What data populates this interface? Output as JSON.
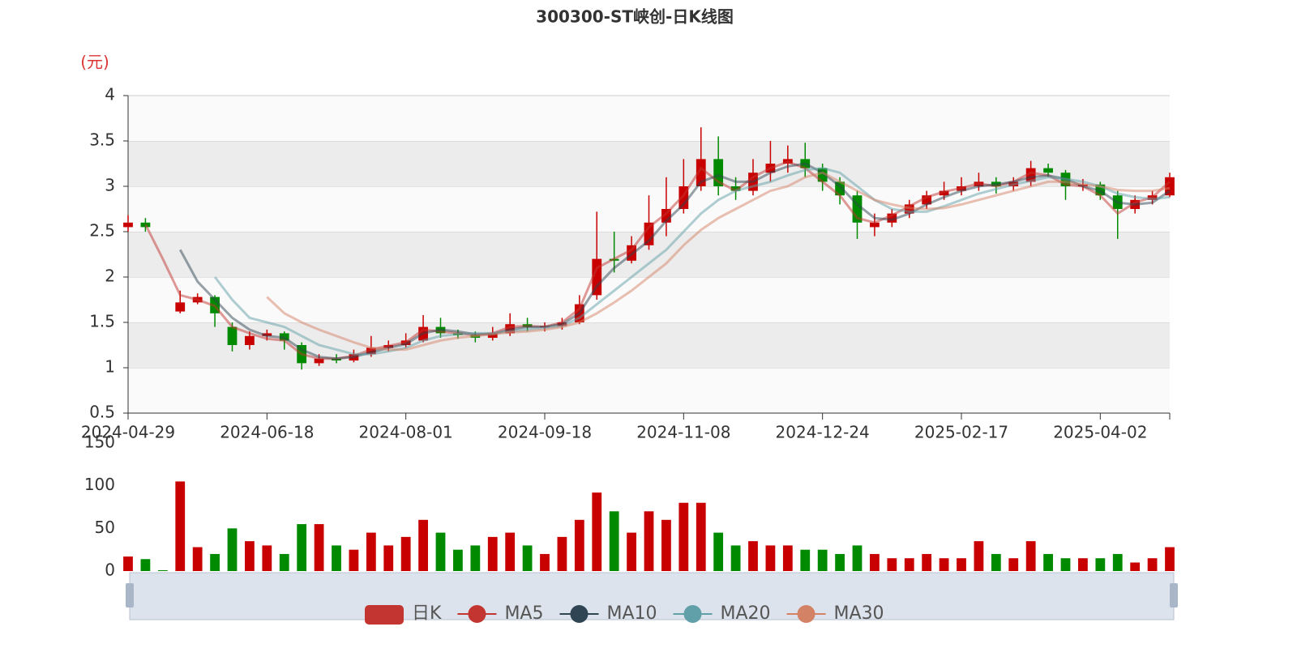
{
  "chart_data": [
    {
      "type": "candlestick",
      "title": "300300-ST峡创-日K线图",
      "y_unit": "(元)",
      "categories": [
        "2024-04-29",
        null,
        null,
        null,
        null,
        null,
        null,
        null,
        "2024-06-18",
        null,
        null,
        null,
        null,
        null,
        null,
        null,
        "2024-08-01",
        null,
        null,
        null,
        null,
        null,
        null,
        null,
        "2024-09-18",
        null,
        null,
        null,
        null,
        null,
        null,
        null,
        "2024-11-08",
        null,
        null,
        null,
        null,
        null,
        null,
        null,
        "2024-12-24",
        null,
        null,
        null,
        null,
        null,
        null,
        null,
        "2025-02-17",
        null,
        null,
        null,
        null,
        null,
        null,
        null,
        "2025-04-02",
        null,
        null,
        null,
        null
      ],
      "ylim": [
        0.5,
        4
      ],
      "yticks": [
        0.5,
        1,
        1.5,
        2,
        2.5,
        3,
        3.5,
        4
      ],
      "up_color": "#c80000",
      "down_color": "#008a00",
      "line_opacity": 0.5,
      "band_color": "#ececec",
      "series": [
        {
          "name": "日K",
          "color": "#c23531",
          "values": [
            [
              2.55,
              2.6,
              2.5,
              2.68
            ],
            [
              2.6,
              2.55,
              2.5,
              2.65
            ],
            null,
            [
              1.62,
              1.72,
              1.6,
              1.85
            ],
            [
              1.72,
              1.78,
              1.7,
              1.82
            ],
            [
              1.78,
              1.6,
              1.45,
              1.8
            ],
            [
              1.45,
              1.25,
              1.18,
              1.5
            ],
            [
              1.25,
              1.35,
              1.2,
              1.4
            ],
            [
              1.35,
              1.38,
              1.3,
              1.42
            ],
            [
              1.38,
              1.3,
              1.2,
              1.4
            ],
            [
              1.25,
              1.05,
              0.98,
              1.28
            ],
            [
              1.05,
              1.1,
              1.02,
              1.15
            ],
            [
              1.1,
              1.08,
              1.05,
              1.15
            ],
            [
              1.08,
              1.15,
              1.06,
              1.2
            ],
            [
              1.15,
              1.22,
              1.12,
              1.35
            ],
            [
              1.22,
              1.25,
              1.18,
              1.3
            ],
            [
              1.25,
              1.3,
              1.22,
              1.38
            ],
            [
              1.3,
              1.45,
              1.28,
              1.58
            ],
            [
              1.45,
              1.38,
              1.33,
              1.55
            ],
            [
              1.38,
              1.36,
              1.32,
              1.42
            ],
            [
              1.36,
              1.33,
              1.28,
              1.4
            ],
            [
              1.33,
              1.38,
              1.3,
              1.45
            ],
            [
              1.38,
              1.48,
              1.35,
              1.6
            ],
            [
              1.48,
              1.45,
              1.4,
              1.55
            ],
            [
              1.45,
              1.46,
              1.4,
              1.5
            ],
            [
              1.46,
              1.5,
              1.42,
              1.55
            ],
            [
              1.5,
              1.7,
              1.48,
              1.8
            ],
            [
              1.8,
              2.2,
              1.75,
              2.72
            ],
            [
              2.2,
              2.18,
              2.05,
              2.5
            ],
            [
              2.18,
              2.35,
              2.15,
              2.45
            ],
            [
              2.35,
              2.6,
              2.3,
              2.9
            ],
            [
              2.6,
              2.75,
              2.45,
              3.1
            ],
            [
              2.75,
              3.0,
              2.7,
              3.3
            ],
            [
              3.0,
              3.3,
              2.95,
              3.65
            ],
            [
              3.3,
              3.0,
              2.9,
              3.55
            ],
            [
              3.0,
              2.95,
              2.85,
              3.1
            ],
            [
              2.95,
              3.15,
              2.9,
              3.3
            ],
            [
              3.15,
              3.25,
              3.05,
              3.5
            ],
            [
              3.25,
              3.3,
              3.15,
              3.45
            ],
            [
              3.3,
              3.2,
              3.1,
              3.48
            ],
            [
              3.2,
              3.05,
              2.95,
              3.25
            ],
            [
              3.05,
              2.9,
              2.8,
              3.1
            ],
            [
              2.9,
              2.6,
              2.42,
              2.95
            ],
            [
              2.55,
              2.6,
              2.45,
              2.7
            ],
            [
              2.6,
              2.7,
              2.55,
              2.75
            ],
            [
              2.7,
              2.8,
              2.65,
              2.85
            ],
            [
              2.8,
              2.9,
              2.75,
              2.95
            ],
            [
              2.9,
              2.95,
              2.85,
              3.05
            ],
            [
              2.95,
              3.0,
              2.9,
              3.1
            ],
            [
              3.0,
              3.05,
              2.95,
              3.15
            ],
            [
              3.05,
              3.0,
              2.92,
              3.1
            ],
            [
              3.0,
              3.05,
              2.95,
              3.1
            ],
            [
              3.05,
              3.2,
              3.0,
              3.28
            ],
            [
              3.2,
              3.15,
              3.1,
              3.25
            ],
            [
              3.15,
              3.0,
              2.85,
              3.18
            ],
            [
              3.0,
              3.02,
              2.95,
              3.08
            ],
            [
              3.02,
              2.9,
              2.85,
              3.05
            ],
            [
              2.9,
              2.75,
              2.42,
              2.95
            ],
            [
              2.75,
              2.85,
              2.7,
              2.9
            ],
            [
              2.85,
              2.9,
              2.8,
              2.95
            ],
            [
              2.9,
              3.1,
              2.88,
              3.15
            ]
          ]
        },
        {
          "name": "MA5",
          "color": "#c23531",
          "values": [
            null,
            2.58,
            2.2,
            1.8,
            1.75,
            1.68,
            1.45,
            1.38,
            1.32,
            1.3,
            1.15,
            1.1,
            1.1,
            1.13,
            1.2,
            1.24,
            1.28,
            1.42,
            1.4,
            1.38,
            1.36,
            1.38,
            1.45,
            1.46,
            1.45,
            1.5,
            1.65,
            2.1,
            2.2,
            2.3,
            2.55,
            2.7,
            2.9,
            3.2,
            3.05,
            2.95,
            3.1,
            3.2,
            3.27,
            3.2,
            3.05,
            2.9,
            2.65,
            2.6,
            2.68,
            2.78,
            2.88,
            2.94,
            2.98,
            3.03,
            3.0,
            3.05,
            3.15,
            3.12,
            3.02,
            3.0,
            2.9,
            2.7,
            2.82,
            2.88,
            3.05
          ]
        },
        {
          "name": "MA10",
          "color": "#2f4554",
          "values": [
            null,
            null,
            null,
            2.3,
            1.95,
            1.75,
            1.55,
            1.42,
            1.35,
            1.33,
            1.2,
            1.12,
            1.1,
            1.12,
            1.17,
            1.22,
            1.26,
            1.38,
            1.42,
            1.4,
            1.37,
            1.37,
            1.42,
            1.45,
            1.45,
            1.48,
            1.6,
            1.9,
            2.1,
            2.25,
            2.4,
            2.62,
            2.8,
            3.05,
            3.12,
            3.05,
            3.05,
            3.15,
            3.22,
            3.25,
            3.15,
            3.0,
            2.8,
            2.65,
            2.63,
            2.7,
            2.8,
            2.88,
            2.95,
            3.0,
            3.02,
            3.05,
            3.1,
            3.12,
            3.08,
            3.0,
            2.95,
            2.82,
            2.8,
            2.82,
            2.95
          ]
        },
        {
          "name": "MA20",
          "color": "#61a0a8",
          "values": [
            null,
            null,
            null,
            null,
            null,
            2.0,
            1.75,
            1.55,
            1.5,
            1.45,
            1.35,
            1.25,
            1.2,
            1.15,
            1.15,
            1.18,
            1.22,
            1.3,
            1.35,
            1.37,
            1.38,
            1.38,
            1.4,
            1.42,
            1.44,
            1.46,
            1.55,
            1.7,
            1.85,
            2.0,
            2.15,
            2.3,
            2.5,
            2.7,
            2.85,
            2.95,
            3.0,
            3.05,
            3.12,
            3.18,
            3.2,
            3.15,
            3.0,
            2.85,
            2.75,
            2.72,
            2.72,
            2.78,
            2.85,
            2.92,
            2.97,
            3.02,
            3.06,
            3.1,
            3.08,
            3.05,
            3.0,
            2.92,
            2.88,
            2.86,
            2.88
          ]
        },
        {
          "name": "MA30",
          "color": "#d48265",
          "values": [
            null,
            null,
            null,
            null,
            null,
            null,
            null,
            null,
            1.78,
            1.6,
            1.5,
            1.42,
            1.35,
            1.28,
            1.22,
            1.2,
            1.2,
            1.25,
            1.3,
            1.33,
            1.35,
            1.37,
            1.39,
            1.4,
            1.42,
            1.45,
            1.5,
            1.6,
            1.72,
            1.85,
            2.0,
            2.15,
            2.35,
            2.52,
            2.65,
            2.75,
            2.85,
            2.95,
            3.0,
            3.1,
            3.15,
            3.05,
            2.95,
            2.85,
            2.8,
            2.76,
            2.75,
            2.76,
            2.8,
            2.85,
            2.9,
            2.95,
            3.0,
            3.05,
            3.05,
            3.02,
            3.0,
            2.96,
            2.95,
            2.95,
            2.98
          ]
        }
      ]
    },
    {
      "type": "bar",
      "ylim": [
        0,
        150
      ],
      "yticks": [
        0,
        50,
        100,
        150
      ],
      "values": [
        17,
        14,
        1,
        105,
        28,
        20,
        50,
        35,
        30,
        20,
        55,
        55,
        30,
        25,
        45,
        30,
        40,
        60,
        45,
        25,
        30,
        40,
        45,
        30,
        20,
        40,
        60,
        92,
        70,
        45,
        70,
        60,
        80,
        80,
        45,
        30,
        35,
        30,
        30,
        25,
        25,
        20,
        30,
        20,
        15,
        15,
        20,
        15,
        15,
        35,
        20,
        15,
        35,
        20,
        15,
        15,
        15,
        20,
        10,
        15,
        28
      ]
    }
  ]
}
